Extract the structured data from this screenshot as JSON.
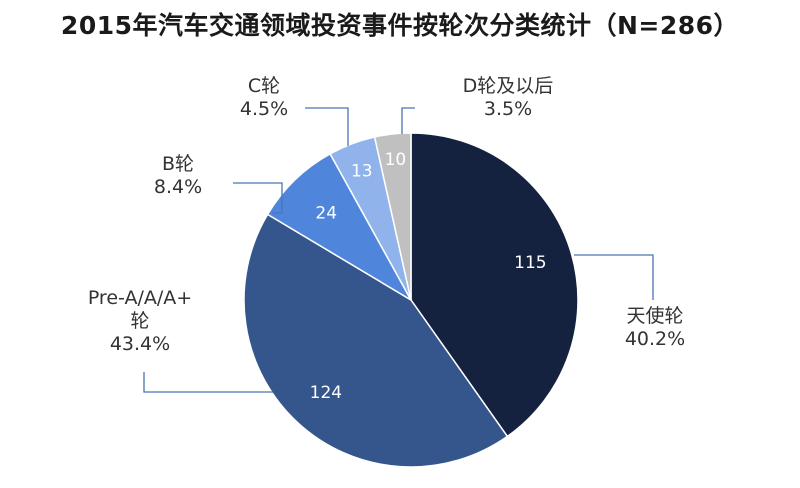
{
  "chart_data": {
    "type": "pie",
    "title": "2015年汽车交通领域投资事件按轮次分类统计（N=286）",
    "categories": [
      "天使轮",
      "Pre-A/A/A+轮",
      "B轮",
      "C轮",
      "D轮及以后"
    ],
    "values": [
      115,
      124,
      24,
      13,
      10
    ],
    "percent_labels": [
      "40.2%",
      "43.4%",
      "8.4%",
      "4.5%",
      "3.5%"
    ],
    "label_lines": [
      [
        "天使轮"
      ],
      [
        "Pre-A/A/A+",
        "轮"
      ],
      [
        "B轮"
      ],
      [
        "C轮"
      ],
      [
        "D轮及以后"
      ]
    ],
    "colors": [
      "#14223f",
      "#34568c",
      "#4f86dc",
      "#8fb3ea",
      "#c0c0c0"
    ],
    "start_angle_deg": 0,
    "direction": "clockwise",
    "legend": "none"
  }
}
